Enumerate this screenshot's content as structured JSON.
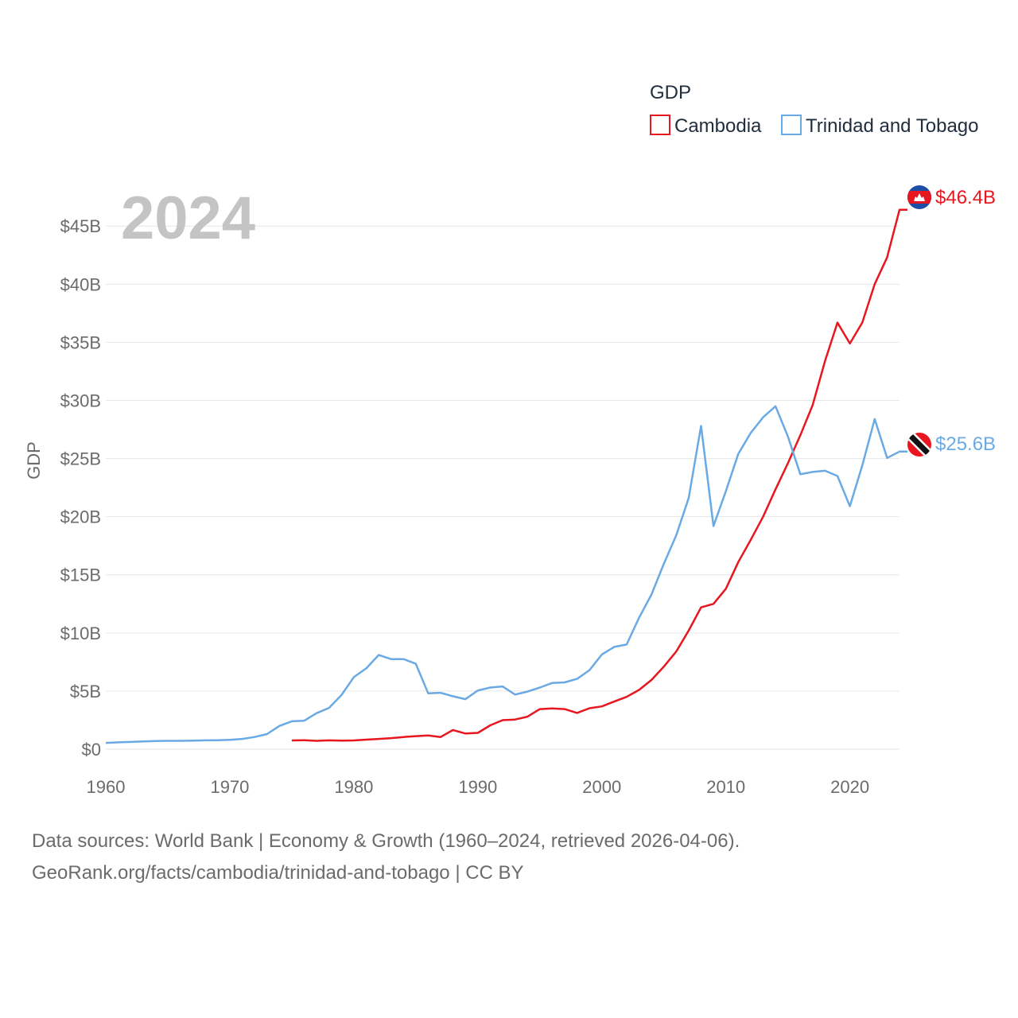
{
  "chart_data": {
    "type": "line",
    "title": "GDP",
    "year_label": "2024",
    "xlabel": "",
    "ylabel": "GDP",
    "xlim": [
      1960,
      2024
    ],
    "ylim": [
      0,
      47
    ],
    "x_ticks": [
      1960,
      1970,
      1980,
      1990,
      2000,
      2010,
      2020
    ],
    "y_ticks": [
      {
        "value": 0,
        "label": "$0"
      },
      {
        "value": 5,
        "label": "$5B"
      },
      {
        "value": 10,
        "label": "$10B"
      },
      {
        "value": 15,
        "label": "$15B"
      },
      {
        "value": 20,
        "label": "$20B"
      },
      {
        "value": 25,
        "label": "$25B"
      },
      {
        "value": 30,
        "label": "$30B"
      },
      {
        "value": 35,
        "label": "$35B"
      },
      {
        "value": 40,
        "label": "$40B"
      },
      {
        "value": 45,
        "label": "$45B"
      }
    ],
    "legend_position": "top-right",
    "series": [
      {
        "name": "Cambodia",
        "color": "#e8161e",
        "end_label": "$46.4B",
        "flag_icon": "cambodia-flag-icon",
        "x": [
          1975,
          1976,
          1977,
          1978,
          1979,
          1980,
          1981,
          1982,
          1983,
          1984,
          1985,
          1986,
          1987,
          1988,
          1989,
          1990,
          1991,
          1992,
          1993,
          1994,
          1995,
          1996,
          1997,
          1998,
          1999,
          2000,
          2001,
          2002,
          2003,
          2004,
          2005,
          2006,
          2007,
          2008,
          2009,
          2010,
          2011,
          2012,
          2013,
          2014,
          2015,
          2016,
          2017,
          2018,
          2019,
          2020,
          2021,
          2022,
          2023,
          2024
        ],
        "values": [
          0.75,
          0.77,
          0.72,
          0.76,
          0.73,
          0.75,
          0.82,
          0.88,
          0.95,
          1.05,
          1.12,
          1.18,
          1.05,
          1.65,
          1.35,
          1.4,
          2.05,
          2.5,
          2.55,
          2.8,
          3.45,
          3.5,
          3.45,
          3.12,
          3.52,
          3.68,
          4.1,
          4.5,
          5.1,
          5.95,
          7.1,
          8.4,
          10.2,
          12.2,
          12.5,
          13.8,
          16.1,
          18.0,
          20.0,
          22.35,
          24.6,
          27.0,
          29.6,
          33.4,
          36.7,
          34.9,
          36.7,
          40.0,
          42.3,
          46.4
        ]
      },
      {
        "name": "Trinidad and Tobago",
        "color": "#6aaae4",
        "end_label": "$25.6B",
        "flag_icon": "trinidad-and-tobago-flag-icon",
        "x": [
          1960,
          1961,
          1962,
          1963,
          1964,
          1965,
          1966,
          1967,
          1968,
          1969,
          1970,
          1971,
          1972,
          1973,
          1974,
          1975,
          1976,
          1977,
          1978,
          1979,
          1980,
          1981,
          1982,
          1983,
          1984,
          1985,
          1986,
          1987,
          1988,
          1989,
          1990,
          1991,
          1992,
          1993,
          1994,
          1995,
          1996,
          1997,
          1998,
          1999,
          2000,
          2001,
          2002,
          2003,
          2004,
          2005,
          2006,
          2007,
          2008,
          2009,
          2010,
          2011,
          2012,
          2013,
          2014,
          2015,
          2016,
          2017,
          2018,
          2019,
          2020,
          2021,
          2022,
          2023,
          2024
        ],
        "values": [
          0.54,
          0.59,
          0.62,
          0.67,
          0.7,
          0.72,
          0.72,
          0.74,
          0.76,
          0.77,
          0.8,
          0.88,
          1.05,
          1.3,
          2.0,
          2.4,
          2.45,
          3.1,
          3.55,
          4.65,
          6.2,
          6.95,
          8.1,
          7.75,
          7.75,
          7.35,
          4.8,
          4.85,
          4.55,
          4.3,
          5.05,
          5.3,
          5.4,
          4.7,
          4.95,
          5.3,
          5.7,
          5.75,
          6.05,
          6.8,
          8.15,
          8.8,
          9.0,
          11.3,
          13.3,
          15.95,
          18.4,
          21.6,
          27.8,
          19.2,
          22.2,
          25.4,
          27.2,
          28.55,
          29.5,
          26.9,
          23.65,
          23.85,
          23.95,
          23.5,
          20.9,
          24.4,
          28.4,
          25.05,
          25.6
        ]
      }
    ]
  },
  "footer": {
    "line1": "Data sources: World Bank | Economy & Growth (1960–2024, retrieved 2026-04-06).",
    "line2": "GeoRank.org/facts/cambodia/trinidad-and-tobago | CC BY"
  }
}
